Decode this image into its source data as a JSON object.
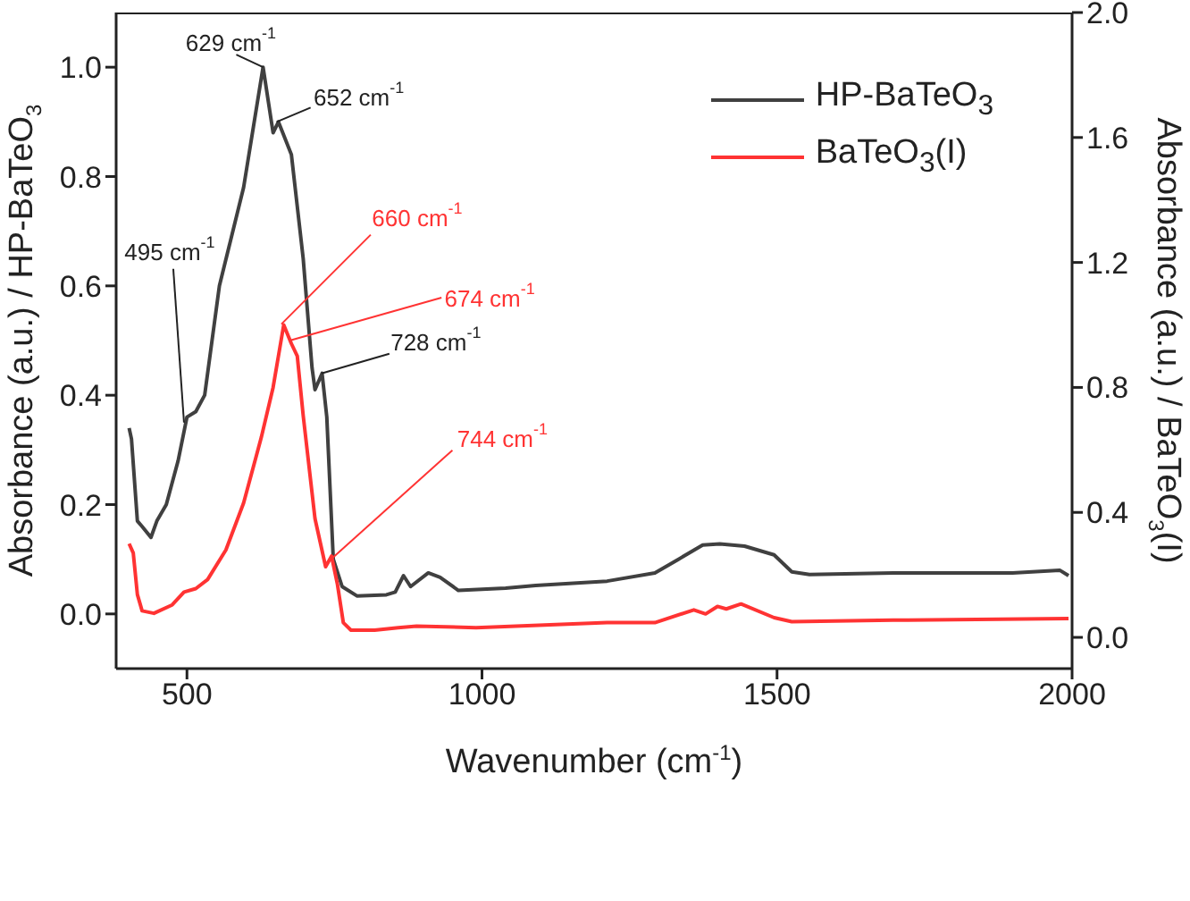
{
  "chart_data": {
    "type": "line",
    "xlabel": "Wavenumber (cm$^{-1}$)",
    "ylabel": "Absorbance (a.u.) / HP-BaTeO$_{3}$",
    "y2label": "Absorbance (a.u.) / BaTeO$_{3}$(I)",
    "xlim": [
      380,
      2000
    ],
    "xticks": [
      500,
      1000,
      1500,
      2000
    ],
    "ylim": [
      -0.1,
      1.1
    ],
    "yticks": [
      {
        "value": 0,
        "label": "0.0"
      },
      {
        "value": 0.2,
        "label": "0.2"
      },
      {
        "value": 0.4,
        "label": "0.4"
      },
      {
        "value": 0.6,
        "label": "0.6"
      },
      {
        "value": 0.8,
        "label": "0.8"
      },
      {
        "value": 1,
        "label": "1.0"
      }
    ],
    "y2lim": [
      -0.1,
      2.0
    ],
    "y2ticks": [
      {
        "value": 0,
        "label": "0.0"
      },
      {
        "value": 0.4,
        "label": "0.4"
      },
      {
        "value": 0.8,
        "label": "0.8"
      },
      {
        "value": 1.2,
        "label": "1.2"
      },
      {
        "value": 1.6,
        "label": "1.6"
      },
      {
        "value": 2,
        "label": "2.0"
      }
    ],
    "legend": "top right",
    "series": [
      {
        "name": "HP-BaTeO$_{3}$",
        "color": "#404040",
        "x": [
          402,
          406,
          416,
          424,
          439,
          449,
          465,
          485,
          500,
          515,
          530,
          555,
          596,
          629,
          646,
          655,
          677,
          697,
          712,
          717,
          729,
          737,
          748,
          763,
          788,
          838,
          853,
          867,
          879,
          909,
          929,
          960,
          1040,
          1091,
          1212,
          1293,
          1333,
          1374,
          1403,
          1445,
          1495,
          1525,
          1555,
          1697,
          1899,
          1979,
          1994
        ],
        "values": [
          0.34,
          0.32,
          0.17,
          0.16,
          0.14,
          0.17,
          0.2,
          0.28,
          0.36,
          0.37,
          0.4,
          0.6,
          0.78,
          1.0,
          0.88,
          0.9,
          0.84,
          0.65,
          0.45,
          0.41,
          0.44,
          0.36,
          0.1,
          0.05,
          0.033,
          0.035,
          0.04,
          0.07,
          0.05,
          0.075,
          0.067,
          0.043,
          0.047,
          0.052,
          0.06,
          0.075,
          0.1,
          0.126,
          0.128,
          0.124,
          0.108,
          0.077,
          0.072,
          0.075,
          0.075,
          0.08,
          0.07
        ]
      },
      {
        "name": "BaTeO$_{3}$(I)",
        "color": "#ff3333",
        "axis": "y2",
        "x": [
          402,
          409,
          416,
          424,
          444,
          475,
          495,
          515,
          535,
          566,
          596,
          626,
          646,
          664,
          677,
          687,
          697,
          717,
          735,
          745,
          755,
          765,
          778,
          818,
          858,
          889,
          990,
          1212,
          1293,
          1359,
          1379,
          1399,
          1414,
          1439,
          1495,
          1525,
          1697,
          1994
        ],
        "values": [
          0.3,
          0.27,
          0.137,
          0.085,
          0.077,
          0.104,
          0.145,
          0.156,
          0.185,
          0.28,
          0.43,
          0.64,
          0.8,
          1.0,
          0.94,
          0.9,
          0.71,
          0.38,
          0.226,
          0.26,
          0.17,
          0.047,
          0.023,
          0.023,
          0.031,
          0.036,
          0.031,
          0.047,
          0.047,
          0.088,
          0.075,
          0.099,
          0.091,
          0.107,
          0.063,
          0.05,
          0.055,
          0.06
        ]
      }
    ],
    "annotations": [
      {
        "text": "495 cm$^{-1}$",
        "x": 495,
        "y": 0.35
      },
      {
        "text": "629 cm$^{-1}$",
        "x": 629,
        "y": 1.0
      },
      {
        "text": "652 cm$^{-1}$",
        "x": 652,
        "y": 0.9
      },
      {
        "text": "728 cm$^{-1}$",
        "x": 728,
        "y": 0.44
      },
      {
        "text": "660 cm$^{-1}$",
        "x": 660,
        "y": 0.53
      },
      {
        "text": "674 cm$^{-1}$",
        "x": 674,
        "y": 0.5
      },
      {
        "text": "744 cm$^{-1}$",
        "x": 744,
        "y": 0.1
      }
    ]
  }
}
